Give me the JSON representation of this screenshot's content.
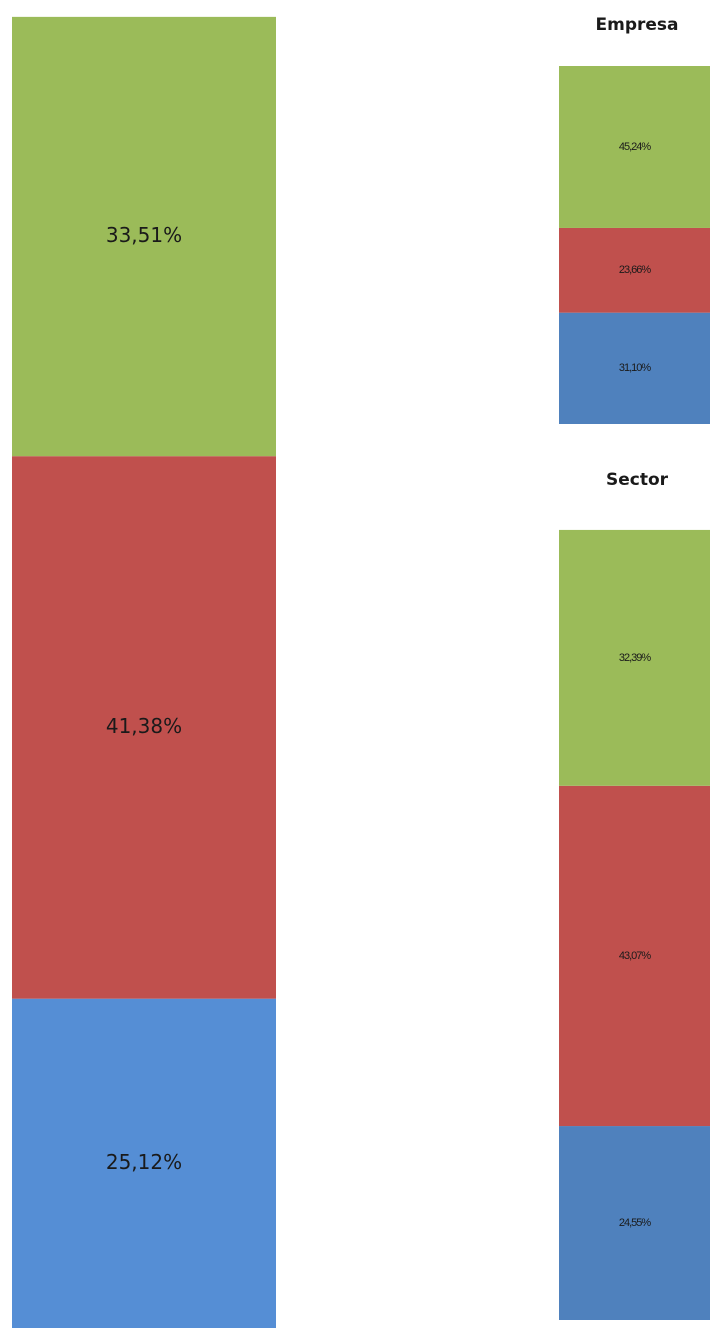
{
  "chart_data": [
    {
      "type": "stacked_bar",
      "ylim": [
        0,
        100
      ],
      "series": [
        {
          "color": "#558ed5",
          "values": [
            25.12
          ],
          "value_labels": [
            "25,12%"
          ]
        },
        {
          "color": "#c0504d",
          "values": [
            41.38
          ],
          "value_labels": [
            "41,38%"
          ]
        },
        {
          "color": "#9bbb59",
          "values": [
            33.51
          ],
          "value_labels": [
            "33,51%"
          ]
        }
      ]
    },
    {
      "type": "stacked_bar",
      "title": "Empresa",
      "ylim": [
        0,
        100
      ],
      "series": [
        {
          "color": "#4f81bd",
          "values": [
            31.1
          ],
          "value_labels": [
            "31,10%"
          ]
        },
        {
          "color": "#c0504d",
          "values": [
            23.66
          ],
          "value_labels": [
            "23,66%"
          ]
        },
        {
          "color": "#9bbb59",
          "values": [
            45.24
          ],
          "value_labels": [
            "45,24%"
          ]
        }
      ]
    },
    {
      "type": "stacked_bar",
      "title": "Sector",
      "ylim": [
        0,
        100
      ],
      "series": [
        {
          "color": "#4f81bd",
          "values": [
            24.55
          ],
          "value_labels": [
            "24,55%"
          ]
        },
        {
          "color": "#c0504d",
          "values": [
            43.07
          ],
          "value_labels": [
            "43,07%"
          ]
        },
        {
          "color": "#9bbb59",
          "values": [
            32.39
          ],
          "value_labels": [
            "32,39%"
          ]
        }
      ]
    }
  ]
}
